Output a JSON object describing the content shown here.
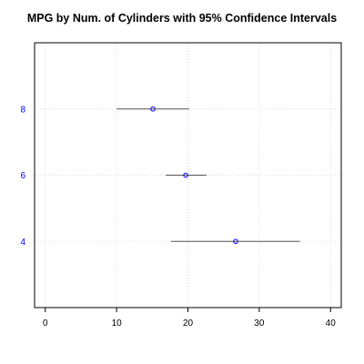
{
  "chart_data": {
    "type": "scatter",
    "title": "MPG by Num. of Cylinders with 95% Confidence Intervals",
    "xlabel": "",
    "ylabel": "",
    "xlim": [
      -1.5,
      41.5
    ],
    "ylim": [
      2,
      10
    ],
    "x_ticks": [
      0,
      10,
      20,
      30,
      40
    ],
    "y_ticks": [
      4,
      6,
      8
    ],
    "grid": true,
    "legend": "none",
    "series": [
      {
        "points": [
          {
            "category": "4",
            "y": 4,
            "estimate": 26.7,
            "ci_low": 17.6,
            "ci_high": 35.7
          },
          {
            "category": "6",
            "y": 6,
            "estimate": 19.7,
            "ci_low": 16.9,
            "ci_high": 22.6
          },
          {
            "category": "8",
            "y": 8,
            "estimate": 15.1,
            "ci_low": 10.0,
            "ci_high": 20.2
          }
        ]
      }
    ]
  },
  "colors": {
    "point": "#0000ff",
    "y_tick_label": "#0000ff",
    "x_tick_label": "#000000",
    "error_bar": "#555555",
    "grid": "#dddddd",
    "axis": "#000000"
  }
}
